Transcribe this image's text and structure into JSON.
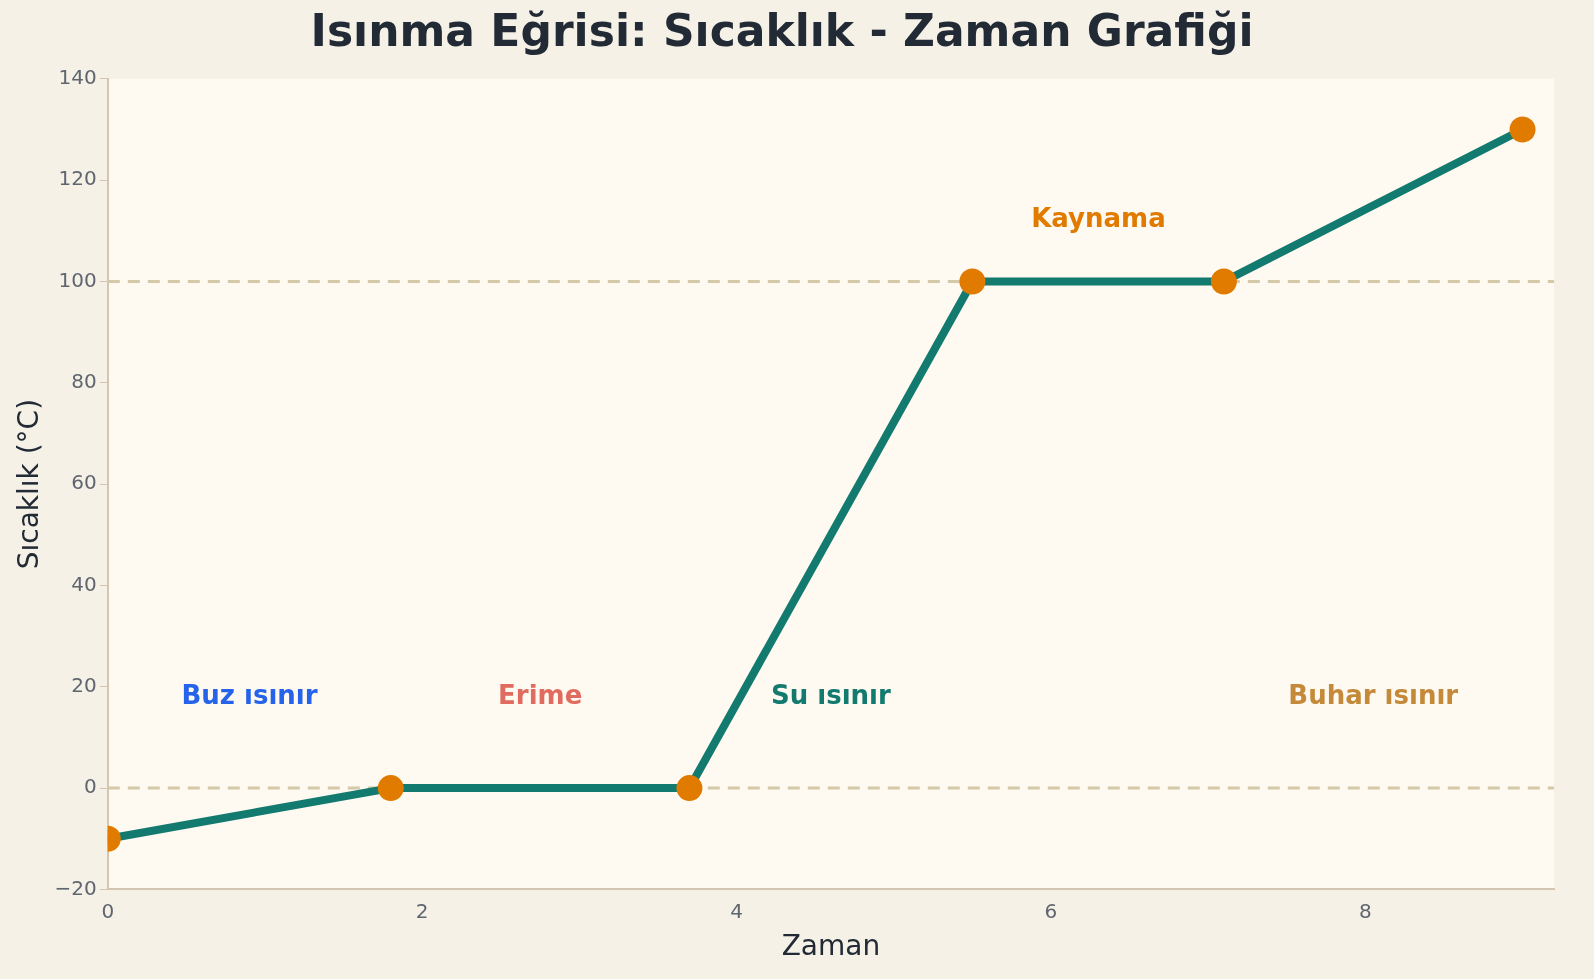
{
  "chart_data": {
    "type": "line",
    "title": "Isınma Eğrisi: Sıcaklık - Zaman Grafiği",
    "xlabel": "Zaman",
    "ylabel": "Sıcaklık (°C)",
    "x": [
      0,
      1.8,
      3.7,
      5.5,
      7.1,
      9
    ],
    "series": [
      {
        "color": "#127a6e",
        "values": [
          -10,
          0,
          0,
          100,
          100,
          130
        ]
      }
    ],
    "marker": "circle",
    "line_style": "solid",
    "grid": false,
    "legend": false,
    "xlim": [
      0,
      9.2
    ],
    "xticks": [
      0,
      2,
      4,
      6,
      8
    ],
    "ylim": [
      -20,
      140
    ],
    "yticks": [
      {
        "value": -20,
        "label": "−20"
      },
      0,
      20,
      40,
      60,
      80,
      100,
      120,
      140
    ],
    "ref_lines": [
      {
        "axis": "y",
        "value": 0,
        "color": "#d4c9a8",
        "line_style": "dashed"
      },
      {
        "axis": "y",
        "value": 100,
        "color": "#d4c9a8",
        "line_style": "dashed"
      }
    ],
    "annotations": [
      "Buz ısınır",
      "Erime",
      "Su ısınır",
      "Kaynama",
      "Buhar ısınır"
    ]
  }
}
